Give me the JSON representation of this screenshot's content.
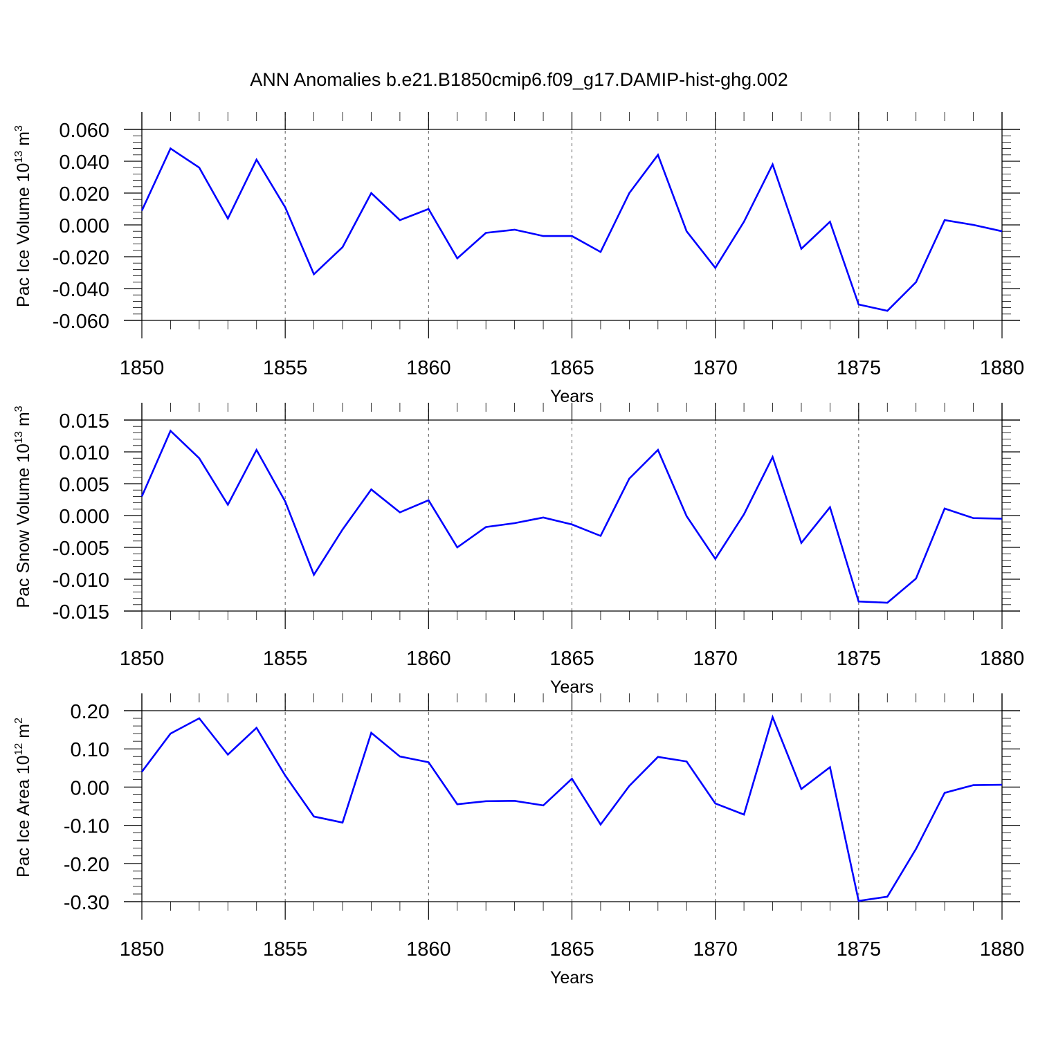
{
  "title": "ANN Anomalies b.e21.B1850cmip6.f09_g17.DAMIP-hist-ghg.002",
  "line_color": "#0000ff",
  "chart_data": [
    {
      "type": "line",
      "ylabel": "Pac Ice Volume 10",
      "ylabel_exp": "13",
      "ylabel_unit": " m",
      "ylabel_unit_exp": "3",
      "xlabel": "Years",
      "xlim": [
        1850,
        1880
      ],
      "ylim": [
        -0.06,
        0.06
      ],
      "yticks": [
        -0.06,
        -0.04,
        -0.02,
        0.0,
        0.02,
        0.04,
        0.06
      ],
      "ytick_labels": [
        "-0.060",
        "-0.040",
        "-0.020",
        "0.000",
        "0.020",
        "0.040",
        "0.060"
      ],
      "xticks": [
        1850,
        1855,
        1860,
        1865,
        1870,
        1875,
        1880
      ],
      "xtick_labels": [
        "1850",
        "1855",
        "1860",
        "1865",
        "1870",
        "1875",
        "1880"
      ],
      "grid": "vertical dashed",
      "x": [
        1850,
        1851,
        1852,
        1853,
        1854,
        1855,
        1856,
        1857,
        1858,
        1859,
        1860,
        1861,
        1862,
        1863,
        1864,
        1865,
        1866,
        1867,
        1868,
        1869,
        1870,
        1871,
        1872,
        1873,
        1874,
        1875,
        1876,
        1877,
        1878,
        1879,
        1880
      ],
      "values": [
        0.009,
        0.048,
        0.036,
        0.004,
        0.041,
        0.011,
        -0.031,
        -0.014,
        0.02,
        0.003,
        0.01,
        -0.021,
        -0.005,
        -0.003,
        -0.007,
        -0.007,
        -0.017,
        0.02,
        0.044,
        -0.004,
        -0.027,
        0.002,
        0.038,
        -0.015,
        0.002,
        -0.05,
        -0.054,
        -0.036,
        0.003,
        0.0,
        -0.004
      ]
    },
    {
      "type": "line",
      "ylabel": "Pac Snow Volume 10",
      "ylabel_exp": "13",
      "ylabel_unit": " m",
      "ylabel_unit_exp": "3",
      "xlabel": "Years",
      "xlim": [
        1850,
        1880
      ],
      "ylim": [
        -0.015,
        0.015
      ],
      "yticks": [
        -0.015,
        -0.01,
        -0.005,
        0.0,
        0.005,
        0.01,
        0.015
      ],
      "ytick_labels": [
        "-0.015",
        "-0.010",
        "-0.005",
        "0.000",
        "0.005",
        "0.010",
        "0.015"
      ],
      "xticks": [
        1850,
        1855,
        1860,
        1865,
        1870,
        1875,
        1880
      ],
      "xtick_labels": [
        "1850",
        "1855",
        "1860",
        "1865",
        "1870",
        "1875",
        "1880"
      ],
      "grid": "vertical dashed",
      "x": [
        1850,
        1851,
        1852,
        1853,
        1854,
        1855,
        1856,
        1857,
        1858,
        1859,
        1860,
        1861,
        1862,
        1863,
        1864,
        1865,
        1866,
        1867,
        1868,
        1869,
        1870,
        1871,
        1872,
        1873,
        1874,
        1875,
        1876,
        1877,
        1878,
        1879,
        1880
      ],
      "values": [
        0.003,
        0.0133,
        0.009,
        0.0017,
        0.0103,
        0.0022,
        -0.0093,
        -0.0022,
        0.0041,
        0.0005,
        0.0024,
        -0.005,
        -0.0018,
        -0.0012,
        -0.0003,
        -0.0014,
        -0.0032,
        0.0058,
        0.0103,
        -0.0001,
        -0.0068,
        0.0002,
        0.0092,
        -0.0043,
        0.0013,
        -0.0135,
        -0.0137,
        -0.0099,
        0.0011,
        -0.0004,
        -0.0005
      ]
    },
    {
      "type": "line",
      "ylabel": "Pac Ice Area 10",
      "ylabel_exp": "12",
      "ylabel_unit": " m",
      "ylabel_unit_exp": "2",
      "xlabel": "Years",
      "xlim": [
        1850,
        1880
      ],
      "ylim": [
        -0.3,
        0.2
      ],
      "yticks": [
        -0.3,
        -0.2,
        -0.1,
        0.0,
        0.1,
        0.2
      ],
      "ytick_labels": [
        "-0.30",
        "-0.20",
        "-0.10",
        "0.00",
        "0.10",
        "0.20"
      ],
      "xticks": [
        1850,
        1855,
        1860,
        1865,
        1870,
        1875,
        1880
      ],
      "xtick_labels": [
        "1850",
        "1855",
        "1860",
        "1865",
        "1870",
        "1875",
        "1880"
      ],
      "grid": "vertical dashed",
      "x": [
        1850,
        1851,
        1852,
        1853,
        1854,
        1855,
        1856,
        1857,
        1858,
        1859,
        1860,
        1861,
        1862,
        1863,
        1864,
        1865,
        1866,
        1867,
        1868,
        1869,
        1870,
        1871,
        1872,
        1873,
        1874,
        1875,
        1876,
        1877,
        1878,
        1879,
        1880
      ],
      "values": [
        0.04,
        0.14,
        0.18,
        0.085,
        0.155,
        0.03,
        -0.077,
        -0.093,
        0.142,
        0.08,
        0.065,
        -0.045,
        -0.037,
        -0.036,
        -0.048,
        0.022,
        -0.098,
        0.003,
        0.079,
        0.067,
        -0.043,
        -0.072,
        0.183,
        -0.005,
        0.052,
        -0.298,
        -0.287,
        -0.162,
        -0.015,
        0.005,
        0.006
      ]
    }
  ]
}
